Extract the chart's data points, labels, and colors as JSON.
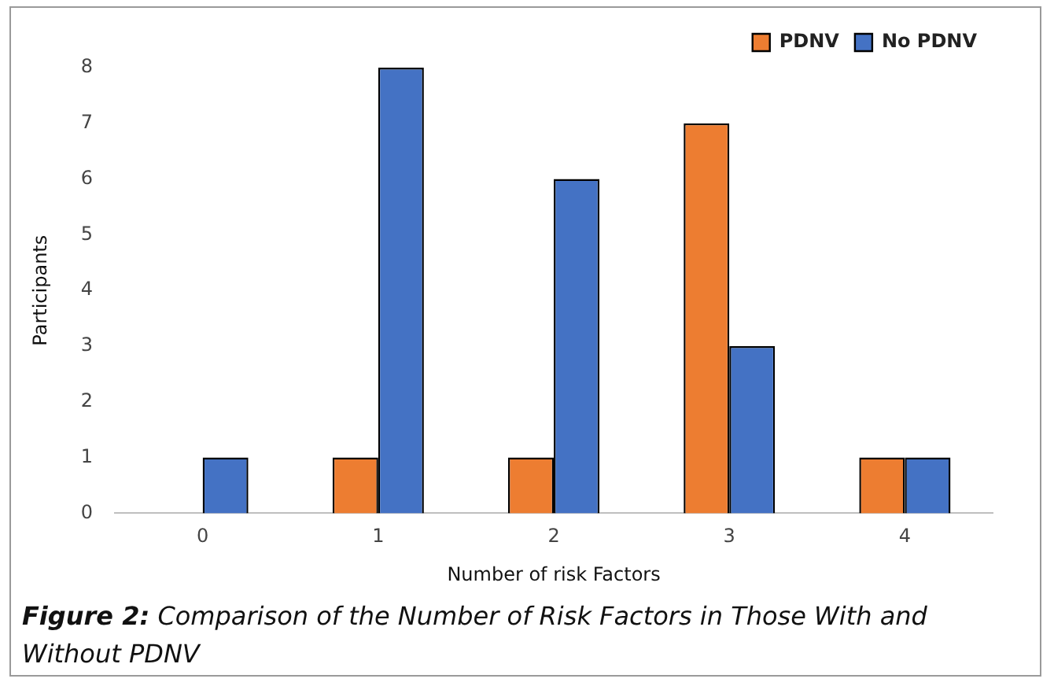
{
  "chart_data": {
    "type": "bar",
    "xlabel": "Number of risk Factors",
    "ylabel": "Participants",
    "categories": [
      "0",
      "1",
      "2",
      "3",
      "4"
    ],
    "series": [
      {
        "name": "PDNV",
        "color": "#ed7d31",
        "values": [
          0,
          1,
          1,
          7,
          1
        ]
      },
      {
        "name": "No PDNV",
        "color": "#4472c4",
        "values": [
          1,
          8,
          6,
          3,
          1
        ]
      }
    ],
    "ylim": [
      0,
      8
    ],
    "yticks": [
      0,
      1,
      2,
      3,
      4,
      5,
      6,
      7,
      8
    ],
    "grid": false,
    "legend": "top right",
    "annotations": [
      "Figure 2: Comparison of the Number of Risk Factors in Those With and Without PDNV"
    ]
  }
}
